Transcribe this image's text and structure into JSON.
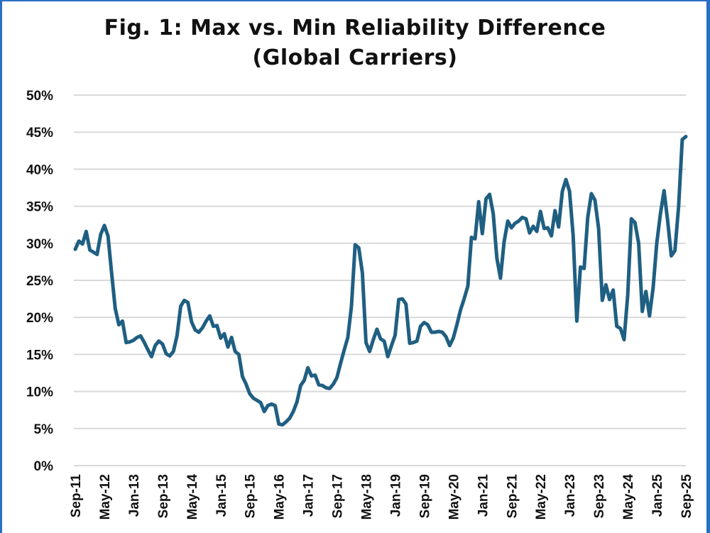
{
  "chart_data": {
    "type": "line",
    "title": "Fig. 1: Max vs. Min Reliability Difference",
    "subtitle": "(Global Carriers)",
    "xlabel": "",
    "ylabel": "",
    "ylim": [
      0,
      50
    ],
    "yticks": [
      "0%",
      "5%",
      "10%",
      "15%",
      "20%",
      "25%",
      "30%",
      "35%",
      "40%",
      "45%",
      "50%"
    ],
    "ytick_values": [
      0,
      5,
      10,
      15,
      20,
      25,
      30,
      35,
      40,
      45,
      50
    ],
    "xtick_labels": [
      "Sep-11",
      "May-12",
      "Jan-13",
      "Sep-13",
      "May-14",
      "Jan-15",
      "Sep-15",
      "May-16",
      "Jan-17",
      "Sep-17",
      "May-18",
      "Jan-19",
      "Sep-19",
      "May-20",
      "Jan-21",
      "Sep-21",
      "May-22",
      "Jan-23",
      "Sep-23",
      "May-24",
      "Jan-25",
      "Sep-25"
    ],
    "xtick_months": [
      0,
      8,
      16,
      24,
      32,
      40,
      48,
      56,
      64,
      72,
      80,
      88,
      96,
      104,
      112,
      120,
      128,
      136,
      144,
      152,
      160,
      168
    ],
    "grid": true,
    "legend": "none",
    "color": "#1f5f82",
    "series": [
      {
        "name": "Max vs. Min Reliability Difference",
        "x_months_since_sep11": [
          0,
          1,
          2,
          3,
          4,
          5,
          6,
          7,
          8,
          9,
          10,
          11,
          12,
          13,
          14,
          15,
          16,
          17,
          18,
          19,
          20,
          21,
          22,
          23,
          24,
          25,
          26,
          27,
          28,
          29,
          30,
          31,
          32,
          33,
          34,
          35,
          36,
          37,
          38,
          39,
          40,
          41,
          42,
          43,
          44,
          45,
          46,
          47,
          48,
          49,
          50,
          51,
          52,
          53,
          54,
          55,
          56,
          57,
          58,
          59,
          60,
          61,
          62,
          63,
          64,
          65,
          66,
          67,
          68,
          69,
          70,
          71,
          72,
          73,
          74,
          75,
          76,
          77,
          78,
          79,
          80,
          81,
          82,
          83,
          84,
          85,
          86,
          87,
          88,
          89,
          90,
          91,
          92,
          93,
          94,
          95,
          96,
          97,
          98,
          99,
          100,
          101,
          102,
          103,
          104,
          105,
          106,
          107,
          108,
          109,
          110,
          111,
          112,
          113,
          114,
          115,
          116,
          117,
          118,
          119,
          120,
          121,
          122,
          123,
          124,
          125,
          126,
          127,
          128,
          129,
          130,
          131,
          132,
          133,
          134,
          135,
          136,
          137,
          138,
          139,
          140,
          141,
          142,
          143,
          144,
          145,
          146,
          147,
          148,
          149,
          150,
          151,
          152,
          153,
          154,
          155,
          156,
          157,
          158,
          159,
          160,
          161,
          162,
          163,
          164,
          165,
          166,
          167,
          168
        ],
        "values": [
          29.2,
          30.3,
          29.9,
          31.6,
          29.1,
          28.8,
          28.5,
          31.2,
          32.4,
          31.0,
          26.0,
          21.2,
          19.0,
          19.5,
          16.6,
          16.7,
          16.9,
          17.3,
          17.5,
          16.6,
          15.6,
          14.7,
          16.2,
          16.8,
          16.4,
          15.1,
          14.8,
          15.4,
          17.5,
          21.5,
          22.3,
          22.0,
          19.4,
          18.3,
          18.0,
          18.6,
          19.5,
          20.2,
          18.8,
          18.9,
          17.2,
          17.8,
          16.0,
          17.3,
          15.4,
          15.0,
          12.0,
          11.0,
          9.7,
          9.1,
          8.8,
          8.5,
          7.3,
          8.1,
          8.3,
          8.1,
          5.6,
          5.5,
          5.9,
          6.4,
          7.3,
          8.6,
          10.8,
          11.5,
          13.2,
          12.1,
          12.2,
          10.9,
          10.8,
          10.5,
          10.4,
          11.0,
          11.9,
          13.8,
          15.6,
          17.3,
          21.5,
          29.8,
          29.4,
          26.0,
          16.6,
          15.4,
          17.0,
          18.4,
          17.1,
          16.8,
          14.7,
          16.2,
          17.6,
          22.4,
          22.5,
          21.8,
          16.5,
          16.6,
          16.8,
          18.8,
          19.3,
          19.0,
          18.0,
          18.0,
          18.1,
          18.0,
          17.4,
          16.2,
          17.2,
          19.0,
          21.0,
          22.5,
          24.2,
          30.8,
          30.6,
          35.6,
          31.3,
          36.0,
          36.6,
          34.0,
          28.0,
          25.3,
          30.2,
          33.0,
          32.1,
          32.7,
          33.0,
          33.5,
          33.3,
          31.4,
          32.3,
          31.6,
          34.3,
          32.0,
          32.1,
          31.0,
          34.4,
          32.2,
          37.0,
          38.6,
          37.0,
          31.0,
          19.5,
          26.8,
          26.6,
          33.5,
          36.7,
          35.8,
          32.0,
          22.3,
          24.4,
          22.4,
          23.7,
          18.8,
          18.5,
          17.0,
          23.0,
          33.3,
          32.8,
          30.0,
          20.8,
          23.5,
          20.2,
          24.0,
          30.0,
          34.0,
          37.1,
          33.0,
          28.3,
          29.0,
          35.0,
          44.0,
          44.4
        ]
      }
    ]
  }
}
